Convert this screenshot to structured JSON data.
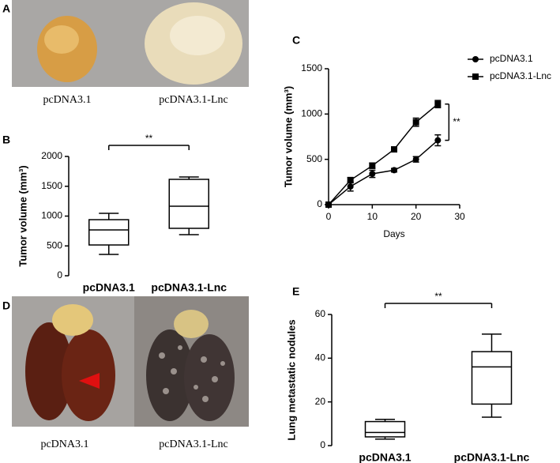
{
  "panels": {
    "letters": [
      "A",
      "B",
      "C",
      "D",
      "E"
    ],
    "photo_a_labels": [
      "pcDNA3.1",
      "pcDNA3.1-Lnc"
    ],
    "photo_d_labels": [
      "pcDNA3.1",
      "pcDNA3.1-Lnc"
    ]
  },
  "chart_data": [
    {
      "type": "box",
      "ylabel": "Tumor volume (mm³)",
      "categories": [
        "pcDNA3.1",
        "pcDNA3.1-Lnc"
      ],
      "boxes": [
        {
          "min": 357,
          "q1": 516,
          "median": 768,
          "q3": 940,
          "max": 1046
        },
        {
          "min": 689,
          "q1": 795,
          "median": 1166,
          "q3": 1616,
          "max": 1656
        }
      ],
      "ylim": [
        0,
        2000
      ],
      "yticks": [
        0,
        500,
        1000,
        1500,
        2000
      ],
      "color": "#000000",
      "significance": "**"
    },
    {
      "type": "line",
      "xlabel": "Days",
      "ylabel": "Tumor volume (mm³)",
      "x": [
        0,
        5,
        10,
        15,
        20,
        25
      ],
      "series": [
        {
          "name": "pcDNA3.1",
          "color": "#000000",
          "marker": "circle",
          "values": [
            0,
            200,
            340,
            380,
            500,
            710
          ],
          "errors": [
            0,
            50,
            40,
            20,
            30,
            60
          ]
        },
        {
          "name": "pcDNA3.1-Lnc",
          "color": "#000000",
          "marker": "square",
          "values": [
            0,
            270,
            430,
            610,
            910,
            1110
          ],
          "errors": [
            0,
            30,
            30,
            10,
            45,
            40
          ]
        }
      ],
      "xlim": [
        0,
        30
      ],
      "ylim": [
        0,
        1500
      ],
      "xticks": [
        0,
        10,
        20,
        30
      ],
      "yticks": [
        0,
        500,
        1000,
        1500
      ],
      "legend": "upper right",
      "significance": "**"
    },
    {
      "type": "box",
      "ylabel": "Lung metastatic nodules",
      "categories": [
        "pcDNA3.1",
        "pcDNA3.1-Lnc"
      ],
      "boxes": [
        {
          "min": 3,
          "q1": 4,
          "median": 6,
          "q3": 11,
          "max": 12
        },
        {
          "min": 13,
          "q1": 19,
          "median": 36,
          "q3": 43,
          "max": 51
        }
      ],
      "ylim": [
        0,
        60
      ],
      "yticks": [
        0,
        20,
        40,
        60
      ],
      "color": "#000000",
      "significance": "**"
    }
  ]
}
